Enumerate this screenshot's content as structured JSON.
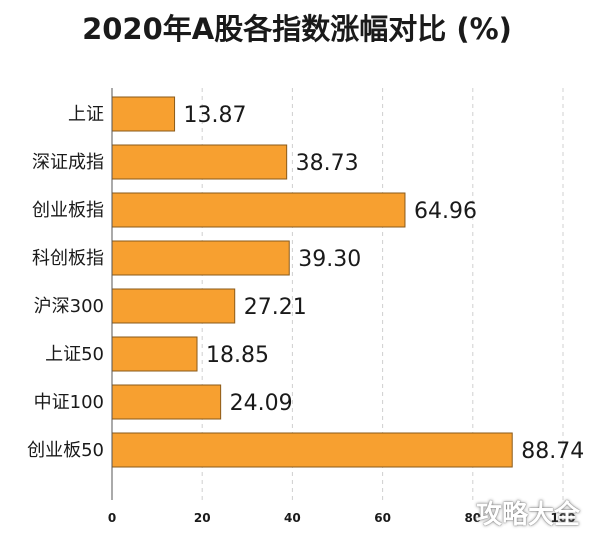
{
  "colors": {
    "bar_fill": "#f7a030",
    "bar_stroke": "#8a5a1a",
    "grid": "#d0d0d0",
    "text": "#1a1a1a"
  },
  "watermark_text": "攻略大全",
  "chart_data": {
    "type": "bar",
    "orientation": "horizontal",
    "title": "2020年A股各指数涨幅对比 (%)",
    "categories": [
      "上证",
      "深证成指",
      "创业板指",
      "科创板指",
      "沪深300",
      "上证50",
      "中证100",
      "创业板50"
    ],
    "values": [
      13.87,
      38.73,
      64.96,
      39.3,
      27.21,
      18.85,
      24.09,
      88.74
    ],
    "value_labels": [
      "13.87",
      "38.73",
      "64.96",
      "39.30",
      "27.21",
      "18.85",
      "24.09",
      "88.74"
    ],
    "xlim": [
      0,
      100
    ],
    "xticks": [
      0,
      20,
      40,
      60,
      80,
      100
    ],
    "xtick_labels": [
      "0",
      "20",
      "40",
      "60",
      "80",
      "100"
    ],
    "grid": true,
    "grid_style": "dashed-vertical",
    "xlabel": "",
    "ylabel": ""
  }
}
